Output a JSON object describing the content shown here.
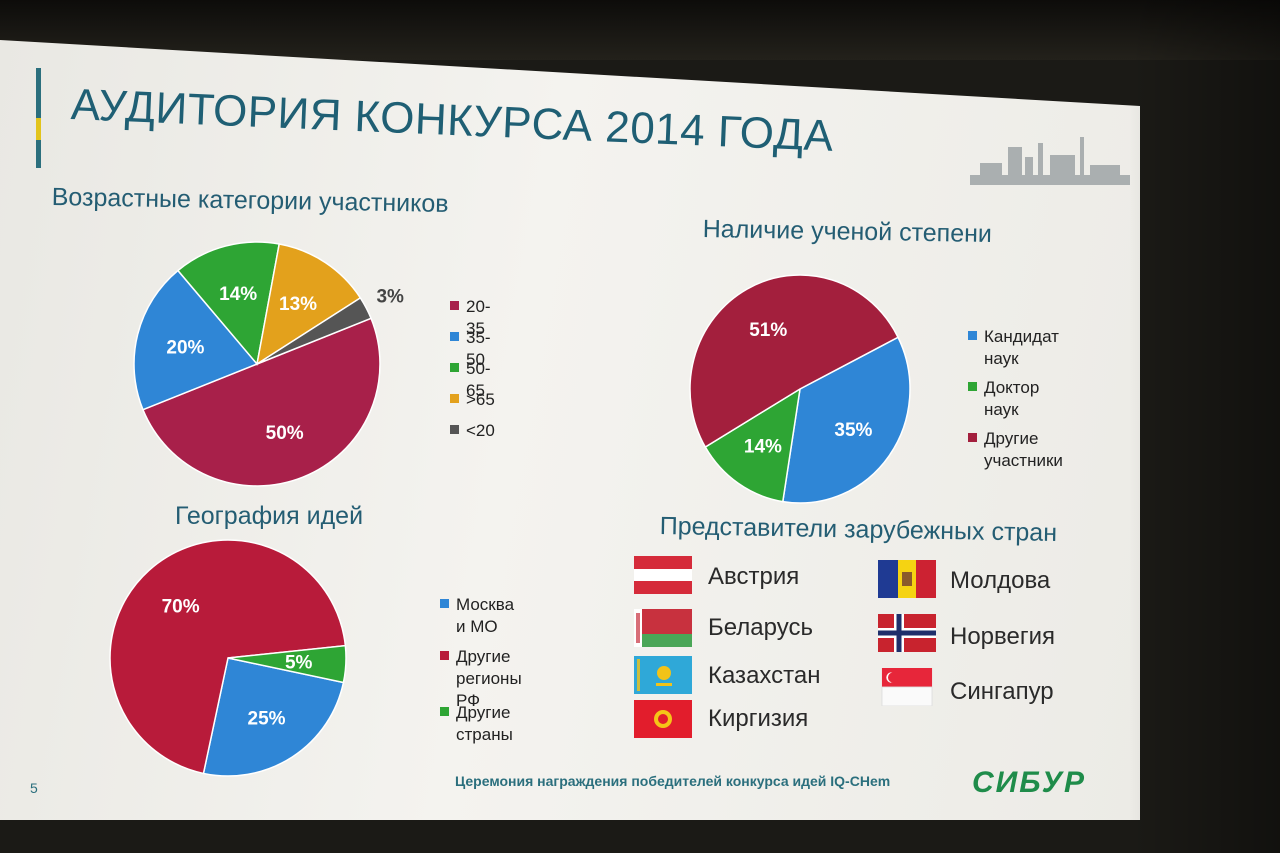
{
  "slide": {
    "title": "АУДИТОРИЯ КОНКУРСА 2014 ГОДА",
    "footer": "Церемония награждения победителей конкурса идей IQ-CHem",
    "slide_number": "5",
    "logo": "СИБУР"
  },
  "chart_data": [
    {
      "type": "pie",
      "title": "Возрастные категории участников",
      "slices": [
        {
          "label": "20-35",
          "value": 50,
          "display": "50%",
          "color": "#a8204a"
        },
        {
          "label": "35-50",
          "value": 20,
          "display": "20%",
          "color": "#2f86d6"
        },
        {
          "label": "50-65",
          "value": 14,
          "display": "14%",
          "color": "#2ea534"
        },
        {
          "label": ">65",
          "value": 13,
          "display": "13%",
          "color": "#e3a11c"
        },
        {
          "label": "<20",
          "value": 3,
          "display": "3%",
          "color": "#555555"
        }
      ],
      "legend": [
        "20-35",
        "35-50",
        "50-65",
        ">65",
        "<20"
      ]
    },
    {
      "type": "pie",
      "title": "Наличие ученой степени",
      "slices": [
        {
          "label": "Кандидат наук",
          "value": 35,
          "display": "35%",
          "color": "#2f86d6"
        },
        {
          "label": "Доктор наук",
          "value": 14,
          "display": "14%",
          "color": "#2ea534"
        },
        {
          "label": "Другие участники",
          "value": 51,
          "display": "51%",
          "color": "#a31f3d"
        }
      ],
      "legend": [
        "Кандидат наук",
        "Доктор наук",
        "Другие\nучастники"
      ]
    },
    {
      "type": "pie",
      "title": "География идей",
      "slices": [
        {
          "label": "Москва и МО",
          "value": 25,
          "display": "25%",
          "color": "#2f86d6"
        },
        {
          "label": "Другие регионы РФ",
          "value": 70,
          "display": "70%",
          "color": "#b81b3a"
        },
        {
          "label": "Другие страны",
          "value": 5,
          "display": "5%",
          "color": "#2ea534"
        }
      ],
      "legend": [
        "Москва и МО",
        "Другие регионы\nРФ",
        "Другие страны"
      ]
    }
  ],
  "countries": {
    "title": "Представители зарубежных стран",
    "items": [
      {
        "name": "Австрия",
        "flag": "austria-flag"
      },
      {
        "name": "Беларусь",
        "flag": "belarus-flag"
      },
      {
        "name": "Казахстан",
        "flag": "kazakhstan-flag"
      },
      {
        "name": "Киргизия",
        "flag": "kyrgyzstan-flag"
      },
      {
        "name": "Молдова",
        "flag": "moldova-flag"
      },
      {
        "name": "Норвегия",
        "flag": "norway-flag"
      },
      {
        "name": "Сингапур",
        "flag": "singapore-flag"
      }
    ]
  }
}
